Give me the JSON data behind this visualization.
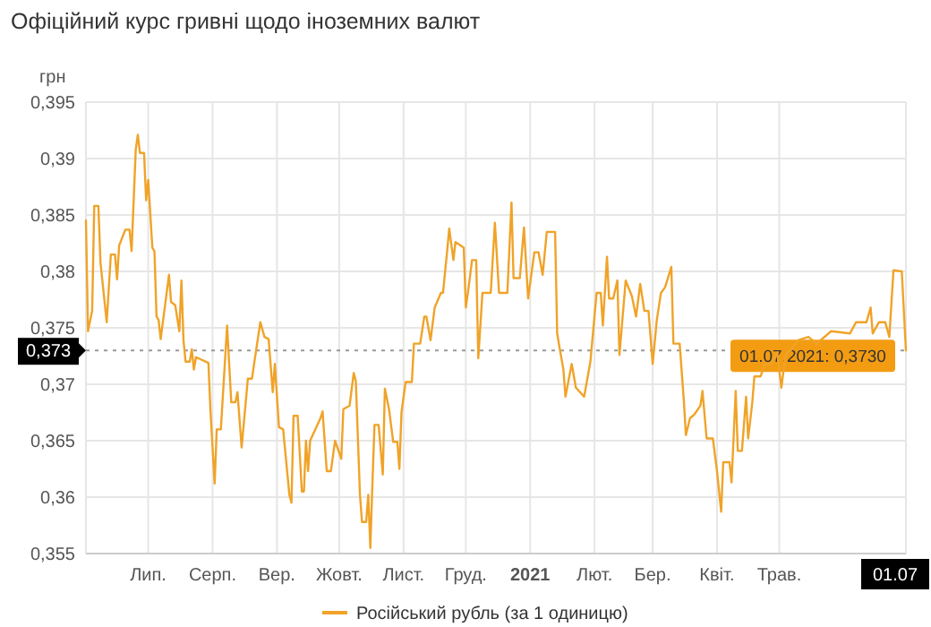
{
  "chart_data": {
    "type": "line",
    "title": "Офіційний курс гривні щодо іноземних валют",
    "ylabel": "грн",
    "xlim": [
      "2020-06-01",
      "2021-07-01"
    ],
    "xticks": [
      {
        "value": "2020-07-01",
        "label": "Лип."
      },
      {
        "value": "2020-08-01",
        "label": "Серп."
      },
      {
        "value": "2020-09-01",
        "label": "Вер."
      },
      {
        "value": "2020-10-01",
        "label": "Жовт."
      },
      {
        "value": "2020-11-01",
        "label": "Лист."
      },
      {
        "value": "2020-12-01",
        "label": "Груд."
      },
      {
        "value": "2021-01-01",
        "label": "2021"
      },
      {
        "value": "2021-02-01",
        "label": "Лют."
      },
      {
        "value": "2021-03-01",
        "label": "Бер."
      },
      {
        "value": "2021-04-01",
        "label": "Квіт."
      },
      {
        "value": "2021-05-01",
        "label": "Трав."
      },
      {
        "value": "2021-07-01",
        "label": "01.07"
      }
    ],
    "ylim": [
      0.355,
      0.395
    ],
    "yticks": [
      {
        "value": 0.355,
        "label": "0,355"
      },
      {
        "value": 0.36,
        "label": "0,36"
      },
      {
        "value": 0.365,
        "label": "0,365"
      },
      {
        "value": 0.37,
        "label": "0,37"
      },
      {
        "value": 0.375,
        "label": "0,375"
      },
      {
        "value": 0.38,
        "label": "0,38"
      },
      {
        "value": 0.385,
        "label": "0,385"
      },
      {
        "value": 0.39,
        "label": "0,39"
      },
      {
        "value": 0.395,
        "label": "0,395"
      }
    ],
    "grid": true,
    "legend": "bottom",
    "marker": "none",
    "line_style": "solid",
    "ref_lines": [
      {
        "axis": "y",
        "value": 0.373,
        "label": "0,373",
        "color": "#999999",
        "line_style": "dotted"
      }
    ],
    "annotations": [
      {
        "text": "01.07.2021: 0,3730",
        "x": "2021-07-01",
        "y": 0.373
      }
    ],
    "series": [
      {
        "name": "Російський рубль (за 1 одиницю)",
        "color": "#f0a328",
        "x": [
          "2020-06-01",
          "2020-06-02",
          "2020-06-04",
          "2020-06-05",
          "2020-06-07",
          "2020-06-08",
          "2020-06-11",
          "2020-06-13",
          "2020-06-15",
          "2020-06-16",
          "2020-06-17",
          "2020-06-20",
          "2020-06-22",
          "2020-06-23",
          "2020-06-25",
          "2020-06-26",
          "2020-06-27",
          "2020-06-29",
          "2020-06-30",
          "2020-07-01",
          "2020-07-03",
          "2020-07-04",
          "2020-07-05",
          "2020-07-06",
          "2020-07-07",
          "2020-07-11",
          "2020-07-12",
          "2020-07-14",
          "2020-07-16",
          "2020-07-17",
          "2020-07-18",
          "2020-07-19",
          "2020-07-21",
          "2020-07-22",
          "2020-07-23",
          "2020-07-24",
          "2020-07-30",
          "2020-07-31",
          "2020-08-02",
          "2020-08-03",
          "2020-08-05",
          "2020-08-08",
          "2020-08-10",
          "2020-08-12",
          "2020-08-13",
          "2020-08-15",
          "2020-08-18",
          "2020-08-20",
          "2020-08-21",
          "2020-08-24",
          "2020-08-26",
          "2020-08-28",
          "2020-08-30",
          "2020-08-31",
          "2020-09-02",
          "2020-09-04",
          "2020-09-07",
          "2020-09-08",
          "2020-09-09",
          "2020-09-11",
          "2020-09-13",
          "2020-09-14",
          "2020-09-15",
          "2020-09-16",
          "2020-09-17",
          "2020-09-22",
          "2020-09-23",
          "2020-09-25",
          "2020-09-27",
          "2020-09-29",
          "2020-10-02",
          "2020-10-03",
          "2020-10-06",
          "2020-10-08",
          "2020-10-09",
          "2020-10-11",
          "2020-10-12",
          "2020-10-14",
          "2020-10-15",
          "2020-10-16",
          "2020-10-17",
          "2020-10-18",
          "2020-10-20",
          "2020-10-22",
          "2020-10-23",
          "2020-10-25",
          "2020-10-27",
          "2020-10-29",
          "2020-10-30",
          "2020-10-31",
          "2020-11-02",
          "2020-11-05",
          "2020-11-06",
          "2020-11-09",
          "2020-11-11",
          "2020-11-12",
          "2020-11-14",
          "2020-11-16",
          "2020-11-19",
          "2020-11-20",
          "2020-11-22",
          "2020-11-23",
          "2020-11-25",
          "2020-11-26",
          "2020-11-30",
          "2020-12-01",
          "2020-12-02",
          "2020-12-04",
          "2020-12-06",
          "2020-12-07",
          "2020-12-09",
          "2020-12-13",
          "2020-12-15",
          "2020-12-17",
          "2020-12-21",
          "2020-12-23",
          "2020-12-24",
          "2020-12-27",
          "2020-12-29",
          "2020-12-31",
          "2021-01-03",
          "2021-01-05",
          "2021-01-07",
          "2021-01-09",
          "2021-01-13",
          "2021-01-14",
          "2021-01-15",
          "2021-01-17",
          "2021-01-18",
          "2021-01-21",
          "2021-01-23",
          "2021-01-27",
          "2021-01-30",
          "2021-02-02",
          "2021-02-04",
          "2021-02-05",
          "2021-02-07",
          "2021-02-08",
          "2021-02-10",
          "2021-02-12",
          "2021-02-13",
          "2021-02-16",
          "2021-02-19",
          "2021-02-21",
          "2021-02-23",
          "2021-02-25",
          "2021-02-27",
          "2021-03-01",
          "2021-03-03",
          "2021-03-05",
          "2021-03-07",
          "2021-03-10",
          "2021-03-11",
          "2021-03-14",
          "2021-03-16",
          "2021-03-17",
          "2021-03-19",
          "2021-03-21",
          "2021-03-24",
          "2021-03-25",
          "2021-03-27",
          "2021-03-30",
          "2021-04-01",
          "2021-04-03",
          "2021-04-04",
          "2021-04-07",
          "2021-04-08",
          "2021-04-10",
          "2021-04-11",
          "2021-04-13",
          "2021-04-15",
          "2021-04-16",
          "2021-04-18",
          "2021-04-19",
          "2021-04-22",
          "2021-04-24",
          "2021-04-27",
          "2021-04-30",
          "2021-05-02",
          "2021-05-04",
          "2021-05-07",
          "2021-05-10",
          "2021-05-15",
          "2021-05-19",
          "2021-05-26",
          "2021-06-04",
          "2021-06-07",
          "2021-06-12",
          "2021-06-14",
          "2021-06-15",
          "2021-06-18",
          "2021-06-21",
          "2021-06-23",
          "2021-06-25",
          "2021-06-29",
          "2021-07-01"
        ],
        "values": [
          0.3845,
          0.3747,
          0.3765,
          0.3858,
          0.3858,
          0.3808,
          0.3755,
          0.3815,
          0.3815,
          0.3793,
          0.3823,
          0.3837,
          0.3837,
          0.3818,
          0.3908,
          0.3921,
          0.3905,
          0.3905,
          0.3863,
          0.3881,
          0.3821,
          0.3818,
          0.376,
          0.3757,
          0.374,
          0.3797,
          0.3773,
          0.377,
          0.3747,
          0.3792,
          0.3739,
          0.372,
          0.372,
          0.3731,
          0.3713,
          0.3724,
          0.3719,
          0.3676,
          0.3612,
          0.366,
          0.366,
          0.3752,
          0.3684,
          0.3684,
          0.3693,
          0.3644,
          0.3705,
          0.3705,
          0.3718,
          0.3755,
          0.3742,
          0.374,
          0.3693,
          0.3718,
          0.3662,
          0.366,
          0.3602,
          0.3595,
          0.3672,
          0.3672,
          0.3605,
          0.3605,
          0.365,
          0.3623,
          0.365,
          0.367,
          0.3676,
          0.3623,
          0.3623,
          0.365,
          0.3634,
          0.3678,
          0.3681,
          0.371,
          0.3703,
          0.3602,
          0.3578,
          0.3578,
          0.3602,
          0.3555,
          0.3612,
          0.3664,
          0.3664,
          0.362,
          0.3696,
          0.3678,
          0.3649,
          0.3649,
          0.3625,
          0.3675,
          0.3702,
          0.3702,
          0.3736,
          0.3736,
          0.376,
          0.376,
          0.3739,
          0.3768,
          0.3781,
          0.3781,
          0.3818,
          0.3838,
          0.381,
          0.3826,
          0.3821,
          0.3768,
          0.3781,
          0.381,
          0.381,
          0.3723,
          0.3781,
          0.3781,
          0.3843,
          0.3781,
          0.3781,
          0.3861,
          0.3794,
          0.3794,
          0.3839,
          0.3776,
          0.3817,
          0.3817,
          0.3797,
          0.3835,
          0.3835,
          0.3745,
          0.3734,
          0.3713,
          0.3689,
          0.3718,
          0.3697,
          0.3689,
          0.372,
          0.3781,
          0.3781,
          0.3752,
          0.3813,
          0.3776,
          0.3776,
          0.3792,
          0.3726,
          0.3792,
          0.3778,
          0.376,
          0.3789,
          0.3765,
          0.3765,
          0.3718,
          0.3757,
          0.3781,
          0.3786,
          0.3804,
          0.3736,
          0.3736,
          0.3686,
          0.3655,
          0.367,
          0.3673,
          0.3681,
          0.3694,
          0.3652,
          0.3652,
          0.3623,
          0.3587,
          0.3631,
          0.3631,
          0.3613,
          0.3694,
          0.3641,
          0.3641,
          0.3689,
          0.3652,
          0.3684,
          0.3707,
          0.3707,
          0.3718,
          0.3718,
          0.3728,
          0.3697,
          0.3726,
          0.3731,
          0.3739,
          0.3742,
          0.3736,
          0.3747,
          0.3745,
          0.3755,
          0.3755,
          0.3768,
          0.3745,
          0.3755,
          0.3755,
          0.3742,
          0.3801,
          0.38,
          0.373
        ]
      }
    ]
  }
}
